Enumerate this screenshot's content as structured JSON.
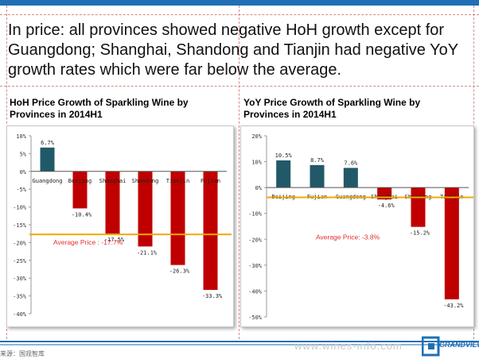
{
  "headline": "In price: all provinces showed negative HoH growth except for Guangdong; Shanghai, Shandong and Tianjin had negative YoY growth rates which were far below the average.",
  "footer": {
    "source": "来源：国观智库",
    "watermark": "www.wines-info.com",
    "logo_text": "GRANDVIEW"
  },
  "colors": {
    "accent_blue": "#1f6fb5",
    "bar_positive": "#215968",
    "bar_negative": "#c00000",
    "average_line": "#f0a800",
    "average_text": "#e03030"
  },
  "chart_data": [
    {
      "type": "bar",
      "title": "HoH Price Growth of Sparkling Wine  by Provinces in 2014H1",
      "categories": [
        "Guangdong",
        "Beijing",
        "Shanghai",
        "Shandong",
        "Tianjin",
        "Fujian"
      ],
      "values": [
        6.7,
        -10.4,
        -17.5,
        -21.1,
        -26.3,
        -33.3
      ],
      "data_labels": [
        "6.7%",
        "-10.4%",
        "-17.5%",
        "-21.1%",
        "-26.3%",
        "-33.3%"
      ],
      "unit": "%",
      "ylim": [
        -40,
        10
      ],
      "yticks": [
        10,
        5,
        0,
        -5,
        -10,
        -15,
        -20,
        -25,
        -30,
        -35,
        -40
      ],
      "ytick_labels": [
        "10%",
        "5%",
        "0%",
        "-5%",
        "-10%",
        "-15%",
        "-20%",
        "-25%",
        "-30%",
        "-35%",
        "-40%"
      ],
      "average": -17.7,
      "average_label": "Average Price : -17.7%",
      "grid": false
    },
    {
      "type": "bar",
      "title": "YoY Price Growth of Sparkling Wine by Provinces in 2014H1",
      "categories": [
        "Beijing",
        "Fujian",
        "Guangdong",
        "Shanghai",
        "Shandong",
        "Tianjin"
      ],
      "values": [
        10.5,
        8.7,
        7.6,
        -4.6,
        -15.2,
        -43.2
      ],
      "data_labels": [
        "10.5%",
        "8.7%",
        "7.6%",
        "-4.6%",
        "-15.2%",
        "-43.2%"
      ],
      "unit": "%",
      "ylim": [
        -50,
        20
      ],
      "yticks": [
        20,
        10,
        0,
        -10,
        -20,
        -30,
        -40,
        -50
      ],
      "ytick_labels": [
        "20%",
        "10%",
        "0%",
        "-10%",
        "-20%",
        "-30%",
        "-40%",
        "-50%"
      ],
      "average": -3.8,
      "average_label": "Average Price: -3.8%",
      "grid": false
    }
  ]
}
